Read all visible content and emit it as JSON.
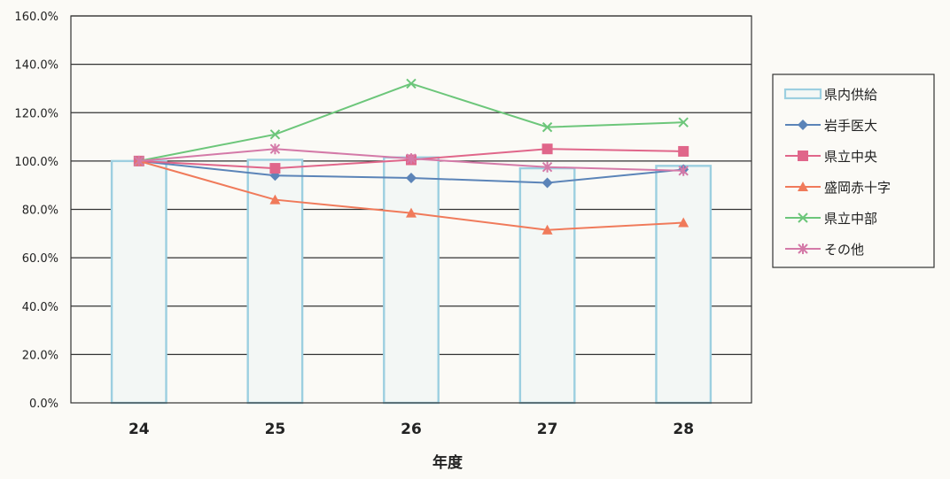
{
  "chart_data": {
    "type": "bar",
    "xlabel": "年度",
    "ylabel": "",
    "categories": [
      "24",
      "25",
      "26",
      "27",
      "28"
    ],
    "ylim": [
      0,
      160
    ],
    "y_ticks": [
      0,
      20,
      40,
      60,
      80,
      100,
      120,
      140,
      160
    ],
    "y_tick_labels": [
      "0.0%",
      "20.0%",
      "40.0%",
      "60.0%",
      "80.0%",
      "100.0%",
      "120.0%",
      "140.0%",
      "160.0%"
    ],
    "grid": "horizontal",
    "legend_position": "right",
    "series": [
      {
        "name": "県内供給",
        "kind": "bar",
        "color": "#9ccfe0",
        "values": [
          100,
          100.5,
          101.5,
          97,
          98
        ]
      },
      {
        "name": "岩手医大",
        "kind": "line",
        "marker": "diamond",
        "color": "#5b84b8",
        "values": [
          100,
          94,
          93,
          91,
          96.5
        ]
      },
      {
        "name": "県立中央",
        "kind": "line",
        "marker": "square",
        "color": "#e0668a",
        "values": [
          100,
          97,
          100.5,
          105,
          104
        ]
      },
      {
        "name": "盛岡赤十字",
        "kind": "line",
        "marker": "triangle",
        "color": "#f07a5a",
        "values": [
          100,
          84,
          78.5,
          71.5,
          74.5
        ]
      },
      {
        "name": "県立中部",
        "kind": "line",
        "marker": "x",
        "color": "#6cc67a",
        "values": [
          100,
          111,
          132,
          114,
          116
        ]
      },
      {
        "name": "その他",
        "kind": "line",
        "marker": "star",
        "color": "#d47aa8",
        "values": [
          100,
          105,
          101,
          97.5,
          96
        ]
      }
    ]
  }
}
